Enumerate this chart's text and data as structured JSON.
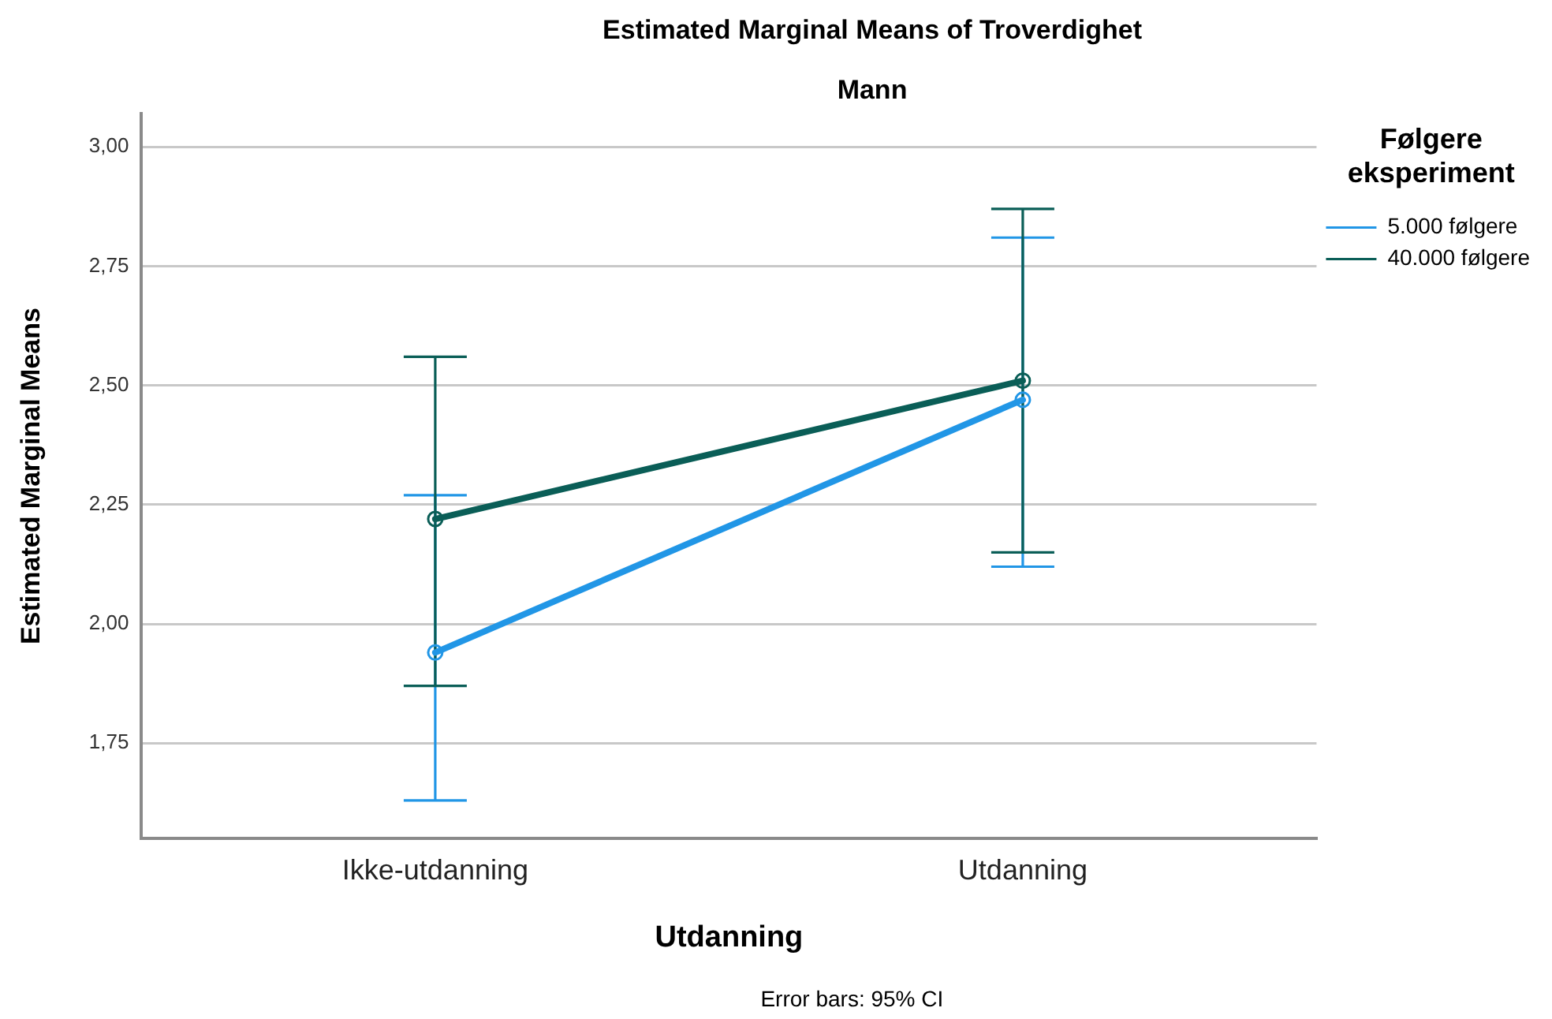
{
  "chart_data": {
    "type": "line",
    "title": "Estimated Marginal Means of Troverdighet",
    "subtitle": "Mann",
    "xlabel": "Utdanning",
    "ylabel": "Estimated Marginal Means",
    "legend_title": "Følgere eksperiment",
    "annotations": [
      "Error bars: 95% CI"
    ],
    "categories": [
      "Ikke-utdanning",
      "Utdanning"
    ],
    "series": [
      {
        "name": "5.000 følgere",
        "color": "#2196e6",
        "values": [
          1.94,
          2.47
        ],
        "errors": [
          [
            1.63,
            2.27
          ],
          [
            2.12,
            2.81
          ]
        ]
      },
      {
        "name": "40.000 følgere",
        "color": "#0a5e57",
        "values": [
          2.22,
          2.51
        ],
        "errors": [
          [
            1.87,
            2.56
          ],
          [
            2.15,
            2.87
          ]
        ]
      }
    ],
    "ylim": [
      1.55,
      3.07
    ],
    "yticks": [
      {
        "value": 1.75,
        "label": "1,75"
      },
      {
        "value": 2,
        "label": "2,00"
      },
      {
        "value": 2.25,
        "label": "2,25"
      },
      {
        "value": 2.5,
        "label": "2,50"
      },
      {
        "value": 2.75,
        "label": "2,75"
      },
      {
        "value": 3,
        "label": "3,00"
      }
    ],
    "grid": "y",
    "legend": "top right",
    "marker": "circle",
    "line_style": "solid"
  }
}
